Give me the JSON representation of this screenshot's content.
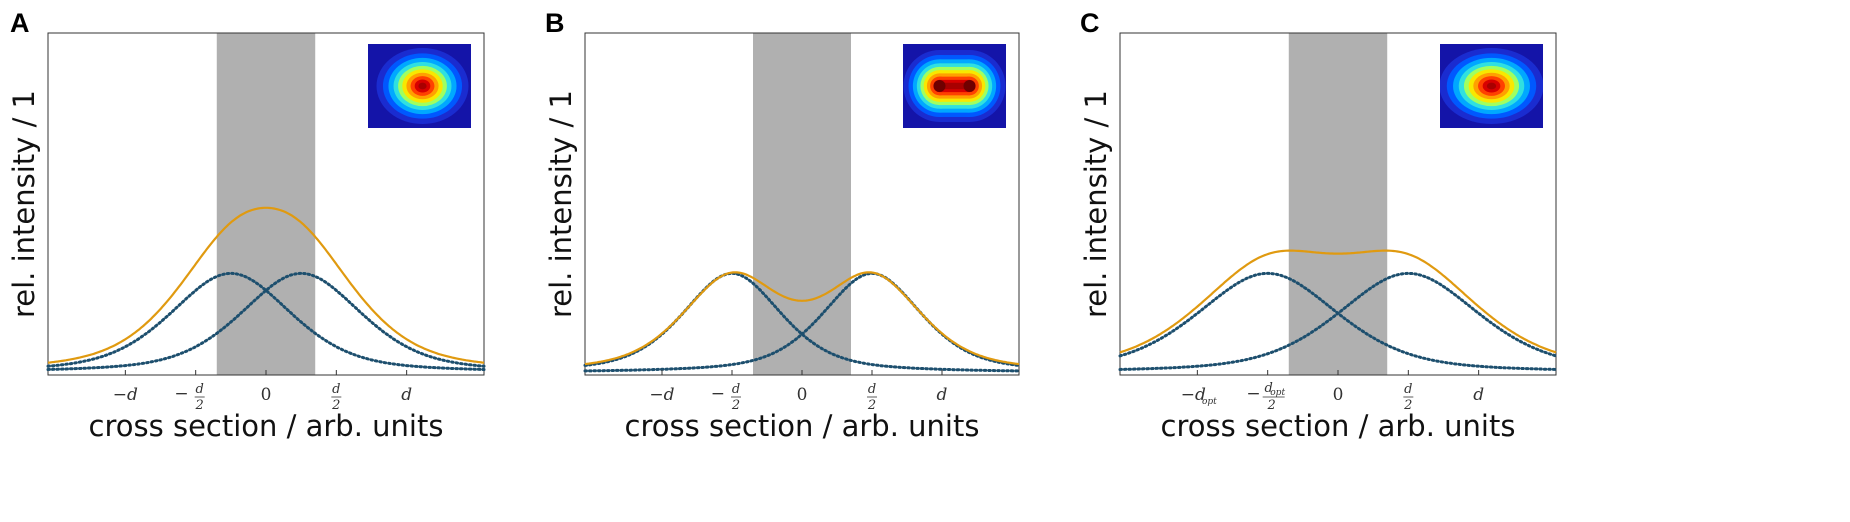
{
  "chart_data": [
    {
      "type": "line",
      "panel": "A",
      "xlabel": "cross section / arb. units",
      "ylabel": "rel. intensity / 1",
      "tick_labels": [
        "−d",
        "−d/2",
        "0",
        "d/2",
        "d"
      ],
      "x_ticks": [
        -2.0,
        -1.0,
        0.0,
        1.0,
        2.0
      ],
      "xlim": [
        -3.1,
        3.1
      ],
      "ylim": [
        0,
        1.0
      ],
      "shaded_region": [
        -0.7,
        0.7
      ],
      "peak_positions": [
        -0.5,
        0.5
      ],
      "sigma": 1.0,
      "series": [
        {
          "values": [
            0.3,
            0.3
          ],
          "style": "dotted",
          "color": "#1d4f6e"
        },
        {
          "values": [
            0.6
          ],
          "style": "solid",
          "color": "#e09a10"
        }
      ],
      "inset": "single-peak"
    },
    {
      "type": "line",
      "panel": "B",
      "xlabel": "cross section / arb. units",
      "ylabel": "rel. intensity / 1",
      "tick_labels": [
        "−d",
        "−d/2",
        "0",
        "d/2",
        "d"
      ],
      "x_ticks": [
        -2.0,
        -1.0,
        0.0,
        1.0,
        2.0
      ],
      "xlim": [
        -3.1,
        3.1
      ],
      "ylim": [
        0,
        1.0
      ],
      "shaded_region": [
        -0.7,
        0.7
      ],
      "peak_positions": [
        -1.0,
        1.0
      ],
      "sigma": 0.78,
      "series": [
        {
          "values": [
            0.3,
            0.3
          ],
          "style": "dotted",
          "color": "#1d4f6e"
        },
        {
          "values": [
            0.34,
            0.31
          ],
          "style": "solid",
          "color": "#e09a10"
        }
      ],
      "inset": "double-peak"
    },
    {
      "type": "line",
      "panel": "C",
      "xlabel": "cross section / arb. units",
      "ylabel": "rel. intensity / 1",
      "tick_labels": [
        "−d_opt",
        "−d_opt/2",
        "0",
        "d/2",
        "d"
      ],
      "x_ticks": [
        -2.0,
        -1.0,
        0.0,
        1.0,
        2.0
      ],
      "xlim": [
        -3.1,
        3.1
      ],
      "ylim": [
        0,
        1.0
      ],
      "shaded_region": [
        -0.7,
        0.7
      ],
      "peak_positions": [
        -1.0,
        1.0
      ],
      "sigma": 1.0,
      "series": [
        {
          "values": [
            0.3,
            0.3
          ],
          "style": "dotted",
          "color": "#1d4f6e"
        },
        {
          "values": [
            0.34
          ],
          "style": "solid",
          "color": "#e09a10"
        }
      ],
      "inset": "flat-top"
    }
  ],
  "colors": {
    "sum_curve": "#e09a10",
    "component_curve": "#1d4f6e",
    "shaded": "#b0b0b0"
  }
}
